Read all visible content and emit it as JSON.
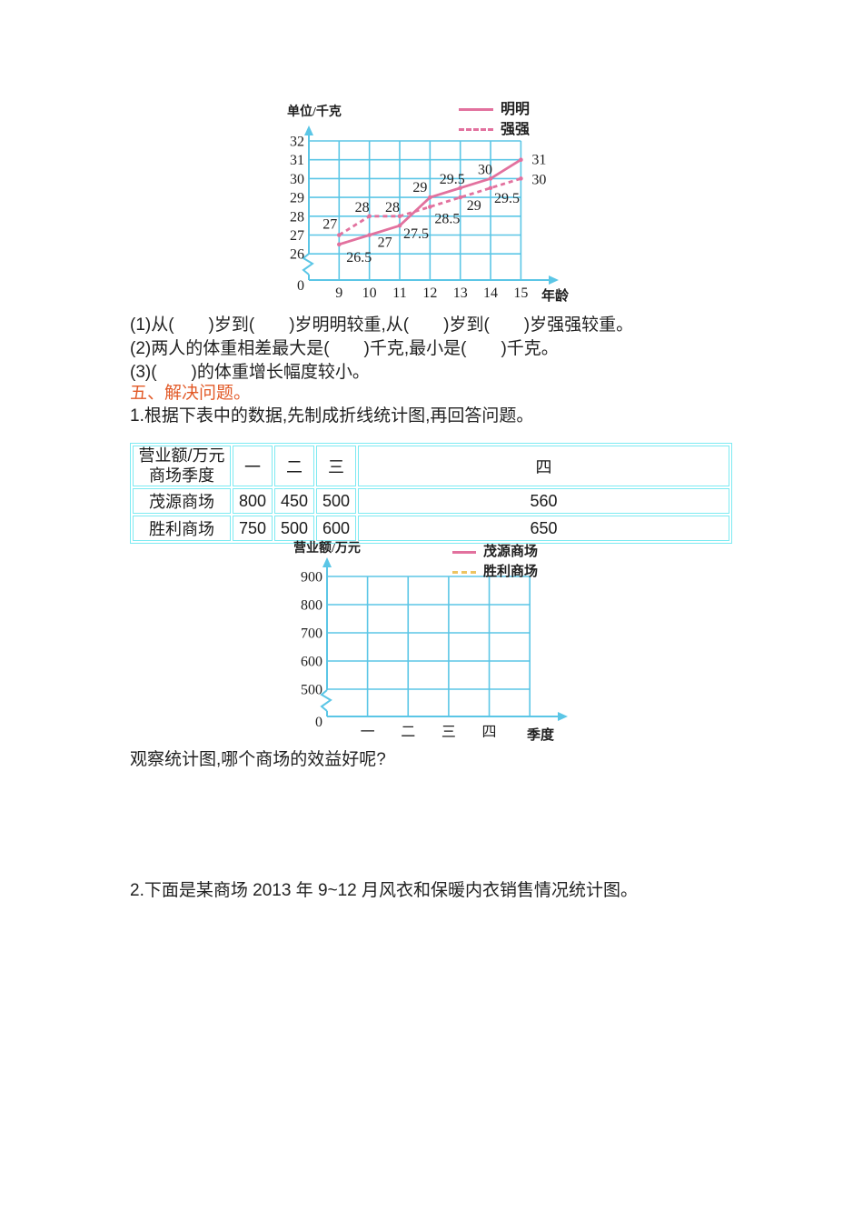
{
  "document": {
    "q_items": [
      "(1)从(　　)岁到(　　)岁明明较重,从(　　)岁到(　　)岁强强较重。",
      "(2)两人的体重相差最大是(　　)千克,最小是(　　)千克。",
      "(3)(　　)的体重增长幅度较小。"
    ],
    "section_title": "五、解决问题。",
    "q1_text": "1.根据下表中的数据,先制成折线统计图,再回答问题。",
    "observe_text": "观察统计图,哪个商场的效益好呢?",
    "q2_text": "2.下面是某商场 2013 年 9~12 月风衣和保暖内衣销售情况统计图。"
  },
  "colors": {
    "grid_cyan": "#5bc6e6",
    "table_border": "#7deaf2",
    "line_pink": "#e2719e",
    "line_yellow": "#edc461",
    "section_orange": "#e25a28",
    "text": "#1f1f1f"
  },
  "chart_data": [
    {
      "id": "weight-chart",
      "type": "line",
      "unit_label": "单位/千克",
      "xlabel": "年龄",
      "x": [
        9,
        10,
        11,
        12,
        13,
        14,
        15
      ],
      "y_ticks": [
        32,
        31,
        30,
        29,
        28,
        27,
        26
      ],
      "origin_label": "0",
      "axis_break": true,
      "grid": true,
      "legend_position": "top-right",
      "series": [
        {
          "name": "明明",
          "style": "solid",
          "color": "#e2719e",
          "values": [
            26.5,
            27,
            27.5,
            29,
            29.5,
            30,
            31
          ],
          "label_offsets": [
            [
              8,
              19,
              "start"
            ],
            [
              9,
              13,
              "start"
            ],
            [
              4,
              14,
              "start"
            ],
            [
              -3,
              -6,
              "end"
            ],
            [
              5,
              -5,
              "end"
            ],
            [
              2,
              -5,
              "end"
            ],
            [
              12,
              5,
              "start"
            ]
          ]
        },
        {
          "name": "强强",
          "style": "dashed",
          "color": "#e2719e",
          "values": [
            27,
            28,
            28,
            28.5,
            29,
            29.5,
            30
          ],
          "label_offsets": [
            [
              -2,
              -7,
              "end"
            ],
            [
              0,
              -5,
              "end"
            ],
            [
              0,
              -5,
              "end"
            ],
            [
              5,
              18,
              "start"
            ],
            [
              7,
              14,
              "start"
            ],
            [
              4,
              16,
              "start"
            ],
            [
              12,
              6,
              "start"
            ]
          ]
        }
      ]
    },
    {
      "id": "sales-chart",
      "type": "line",
      "unit_label": "营业额/万元",
      "xlabel": "季度",
      "x_categories": [
        "一",
        "二",
        "三",
        "四"
      ],
      "y_ticks": [
        900,
        800,
        700,
        600,
        500
      ],
      "origin_label": "0",
      "axis_break": true,
      "grid": true,
      "legend_position": "top-right",
      "series": [],
      "legend": [
        {
          "name": "茂源商场",
          "style": "solid",
          "color": "#e2719e"
        },
        {
          "name": "胜利商场",
          "style": "dashed",
          "color": "#edc461"
        }
      ]
    }
  ],
  "table": {
    "corner_header": "营业额/万元商场季度",
    "col_headers": [
      "一",
      "二",
      "三",
      "四"
    ],
    "rows": [
      {
        "name": "茂源商场",
        "values": [
          800,
          450,
          500,
          560
        ]
      },
      {
        "name": "胜利商场",
        "values": [
          750,
          500,
          600,
          650
        ]
      }
    ]
  }
}
